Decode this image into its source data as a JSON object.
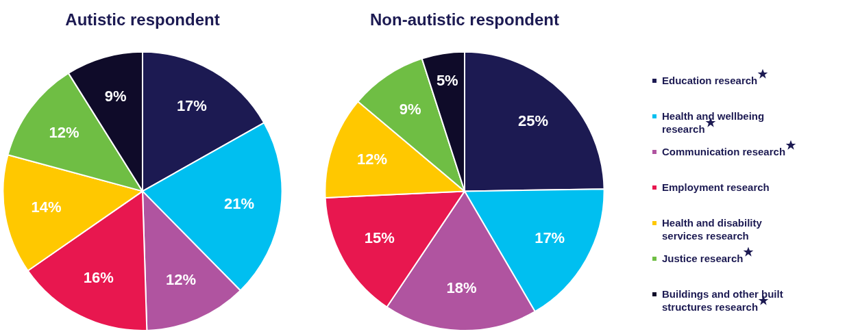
{
  "chart_data": [
    {
      "type": "pie",
      "title": "Autistic respondent",
      "categories": [
        "Education research",
        "Health and wellbeing research",
        "Communication research",
        "Employment research",
        "Health and disability services research",
        "Justice research",
        "Buildings and other built structures research"
      ],
      "values": [
        17,
        21,
        12,
        16,
        14,
        12,
        9
      ],
      "value_labels": [
        "17%",
        "21%",
        "12%",
        "16%",
        "14%",
        "12%",
        "9%"
      ],
      "colors": [
        "#1c1a52",
        "#00bff0",
        "#b054a0",
        "#e8174f",
        "#ffc800",
        "#6fbe44",
        "#0f0b29"
      ],
      "legend": "right"
    },
    {
      "type": "pie",
      "title": "Non-autistic respondent",
      "categories": [
        null,
        null,
        null,
        null,
        null,
        null,
        null
      ],
      "values": [
        25,
        17,
        18,
        15,
        12,
        9,
        5
      ],
      "value_labels": [
        "25%",
        "17%",
        "18%",
        "15%",
        "12%",
        "9%",
        "5%"
      ],
      "colors": [
        "#1c1a52",
        "#00bff0",
        "#b054a0",
        "#e8174f",
        "#ffc800",
        "#6fbe44",
        "#0f0b29"
      ]
    }
  ]
}
